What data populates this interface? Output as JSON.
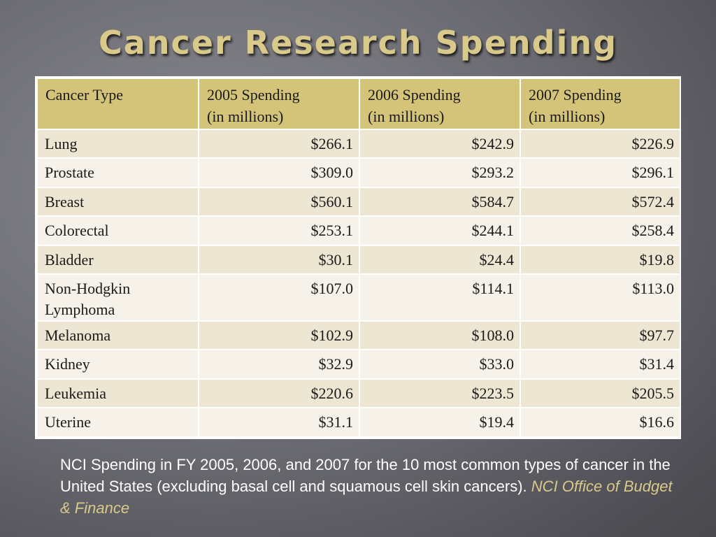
{
  "slide": {
    "title": "Cancer Research Spending"
  },
  "table": {
    "headers": [
      {
        "line1": "Cancer Type",
        "line2": ""
      },
      {
        "line1": "2005 Spending",
        "line2": "(in millions)"
      },
      {
        "line1": "2006 Spending",
        "line2": "(in millions)"
      },
      {
        "line1": "2007 Spending",
        "line2": "(in millions)"
      }
    ],
    "rows": [
      {
        "type": "Lung",
        "values": [
          "$266.1",
          "$242.9",
          "$226.9"
        ]
      },
      {
        "type": "Prostate",
        "values": [
          "$309.0",
          "$293.2",
          "$296.1"
        ]
      },
      {
        "type": "Breast",
        "values": [
          "$560.1",
          "$584.7",
          "$572.4"
        ]
      },
      {
        "type": "Colorectal",
        "values": [
          "$253.1",
          "$244.1",
          "$258.4"
        ]
      },
      {
        "type": "Bladder",
        "values": [
          "$30.1",
          "$24.4",
          "$19.8"
        ]
      },
      {
        "type": "Non-Hodgkin Lymphoma",
        "values": [
          "$107.0",
          "$114.1",
          "$113.0"
        ]
      },
      {
        "type": "Melanoma",
        "values": [
          "$102.9",
          "$108.0",
          "$97.7"
        ]
      },
      {
        "type": "Kidney",
        "values": [
          "$32.9",
          "$33.0",
          "$31.4"
        ]
      },
      {
        "type": "Leukemia",
        "values": [
          "$220.6",
          "$223.5",
          "$205.5"
        ]
      },
      {
        "type": "Uterine",
        "values": [
          "$31.1",
          "$19.4",
          "$16.6"
        ]
      }
    ]
  },
  "caption": {
    "text": "NCI Spending in FY 2005, 2006, and 2007 for the 10 most common types of cancer in the United States (excluding basal cell and squamous cell skin cancers). ",
    "source": "NCI Office of Budget & Finance"
  },
  "colors": {
    "title": "#d9c98a",
    "header_fill": "#d4c47a",
    "row_fill_a": "#ede6d3",
    "row_fill_b": "#f6f2e9",
    "source_text": "#d9c98a"
  }
}
